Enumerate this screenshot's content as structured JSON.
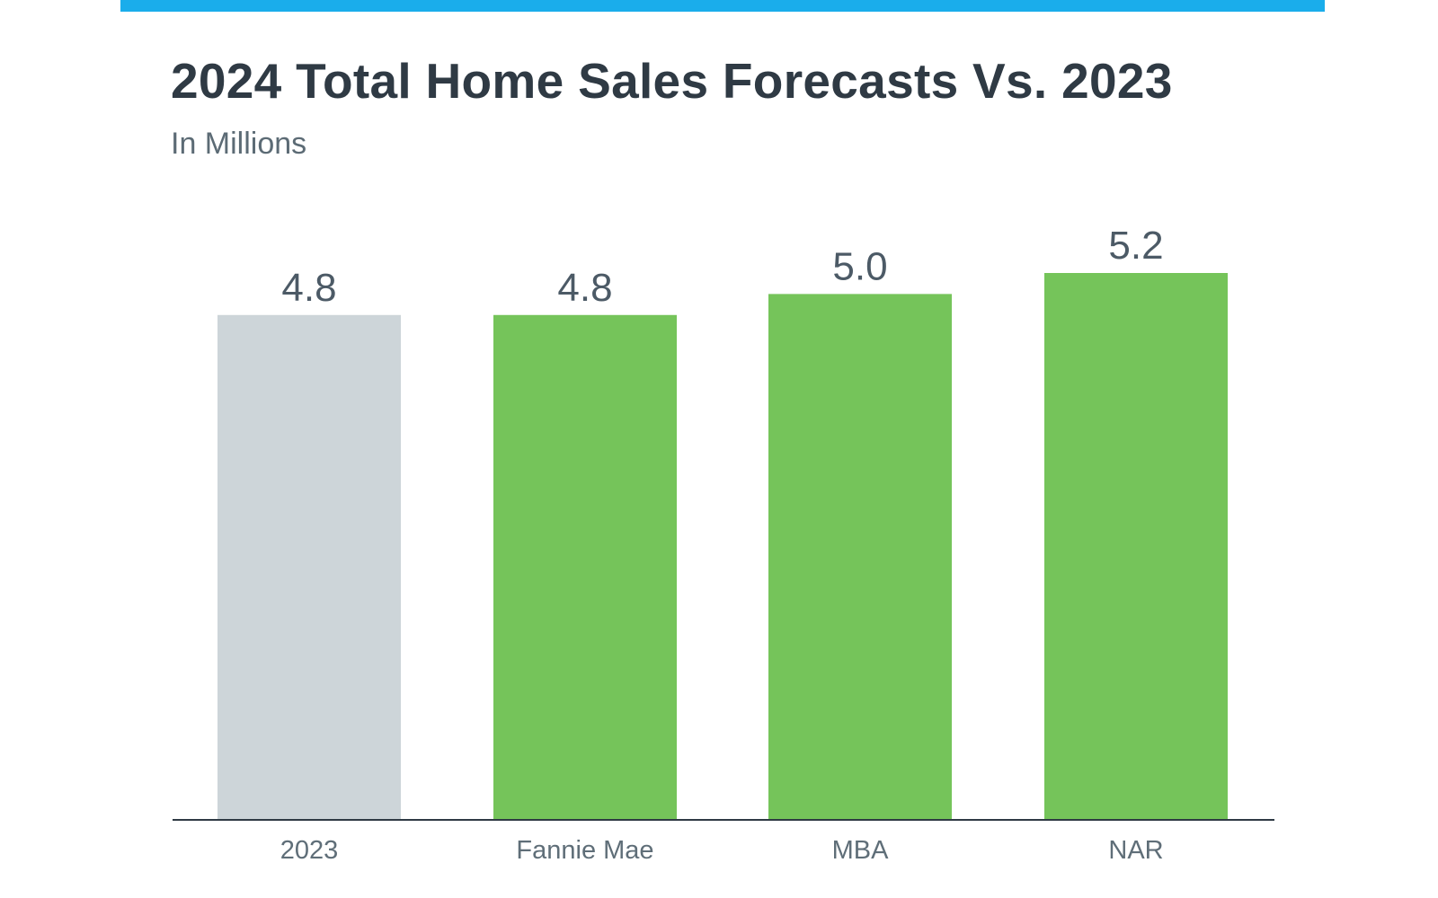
{
  "colors": {
    "top_bar": "#1aadeb",
    "baseline_bar": "#cdd5d9",
    "forecast_bar": "#75c45a",
    "axis_line": "#2f3a44",
    "title": "#2f3a44"
  },
  "chart_data": {
    "type": "bar",
    "title": "2024 Total Home Sales Forecasts Vs. 2023",
    "subtitle": "In Millions",
    "categories": [
      "2023",
      "Fannie Mae",
      "MBA",
      "NAR"
    ],
    "values": [
      4.8,
      4.8,
      5.0,
      5.2
    ],
    "value_labels": [
      "4.8",
      "4.8",
      "5.0",
      "5.2"
    ],
    "bar_colors": [
      "#cdd5d9",
      "#75c45a",
      "#75c45a",
      "#75c45a"
    ],
    "xlabel": "",
    "ylabel": "",
    "ylim": [
      0,
      5.2
    ],
    "grid": false,
    "legend": "none"
  }
}
